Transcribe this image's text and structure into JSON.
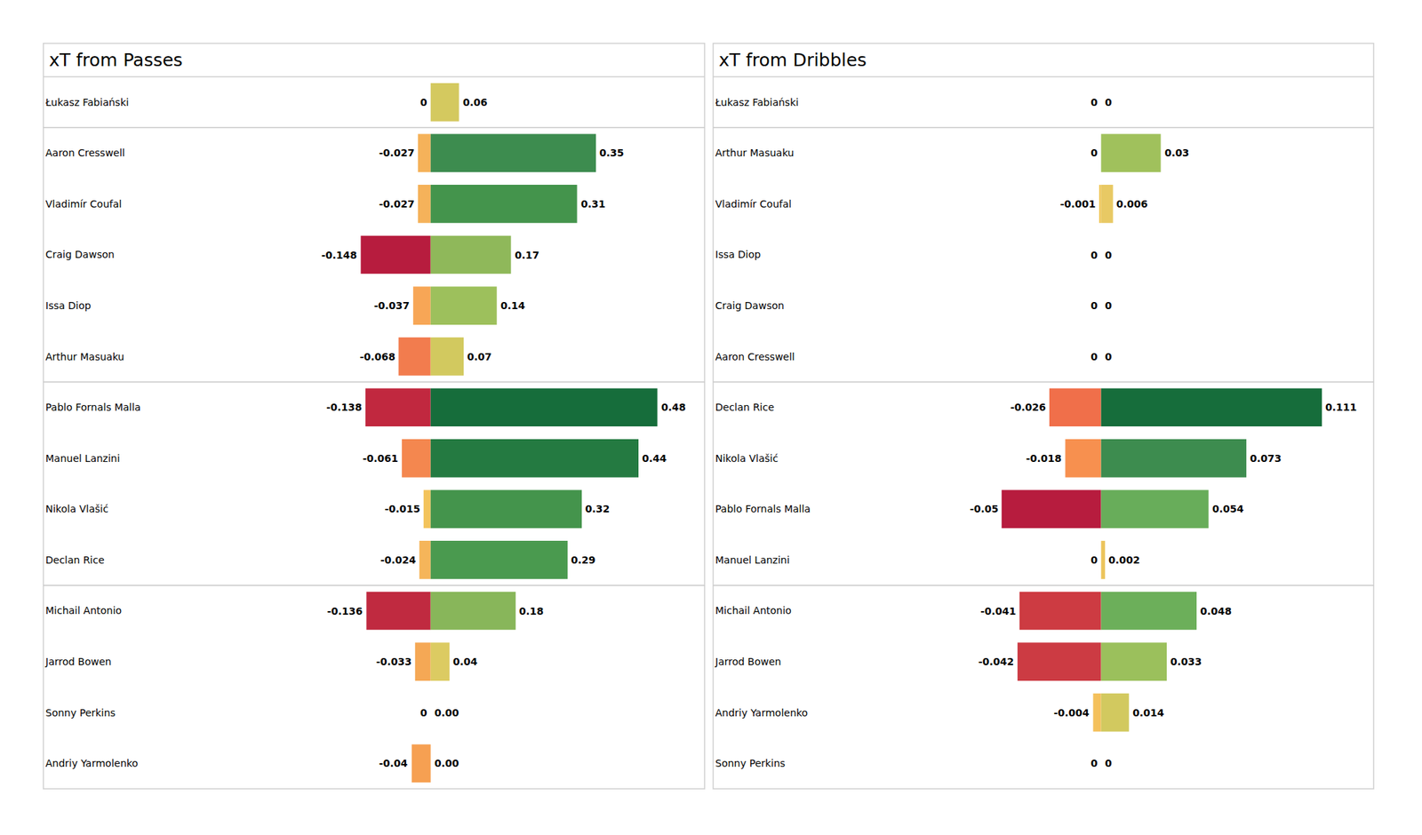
{
  "chart_data": [
    {
      "type": "bar",
      "title": "xT from Passes",
      "orientation": "horizontal",
      "data_labels": true,
      "tick_labels": "y",
      "categories": [
        "Łukasz Fabiański",
        "Aaron Cresswell",
        "Vladimír Coufal",
        "Craig Dawson",
        "Issa Diop",
        "Arthur Masuaku",
        "Pablo Fornals Malla",
        "Manuel Lanzini",
        "Nikola Vlašić",
        "Declan Rice",
        "Michail Antonio",
        "Jarrod Bowen",
        "Sonny Perkins",
        "Andriy Yarmolenko"
      ],
      "xlim": [
        -0.82,
        0.58
      ],
      "series": [
        {
          "values": [
            0,
            -0.027,
            -0.027,
            -0.148,
            -0.037,
            -0.068,
            -0.138,
            -0.061,
            -0.015,
            -0.024,
            -0.136,
            -0.033,
            0,
            -0.04
          ],
          "colors": [
            "#e8c964",
            "#f5b25a",
            "#f5b25a",
            "#b71c3e",
            "#f7a656",
            "#f27c4e",
            "#c1283f",
            "#f4874f",
            "#f3c35b",
            "#f5b55a",
            "#c02a40",
            "#f5a855",
            "#e8c964",
            "#f6a052"
          ]
        },
        {
          "values": [
            0.06,
            0.35,
            0.31,
            0.17,
            0.14,
            0.07,
            0.48,
            0.44,
            0.32,
            0.29,
            0.18,
            0.04,
            0,
            0
          ],
          "value_labels": [
            "0.06",
            "0.35",
            "0.31",
            "0.17",
            "0.14",
            "0.07",
            "0.48",
            "0.44",
            "0.32",
            "0.29",
            "0.18",
            "0.04",
            "0.00",
            "0.00"
          ],
          "colors": [
            "#d4c95f",
            "#3d8c4f",
            "#44944c",
            "#8fb85a",
            "#9dc05c",
            "#d2c95f",
            "#166d3b",
            "#247a41",
            "#44944c",
            "#4a9a4f",
            "#88b65a",
            "#dccb62",
            "#e8c964",
            "#e8c964"
          ]
        }
      ]
    },
    {
      "type": "bar",
      "title": "xT from Dribbles",
      "orientation": "horizontal",
      "data_labels": true,
      "tick_labels": "y",
      "categories": [
        "Łukasz Fabiański",
        "Arthur Masuaku",
        "Vladimír Coufal",
        "Issa Diop",
        "Craig Dawson",
        "Aaron Cresswell",
        "Declan Rice",
        "Nikola Vlašić",
        "Pablo Fornals Malla",
        "Manuel Lanzini",
        "Michail Antonio",
        "Jarrod Bowen",
        "Andriy Yarmolenko",
        "Sonny Perkins"
      ],
      "xlim": [
        -0.195,
        0.137
      ],
      "series": [
        {
          "values": [
            0,
            0,
            -0.001,
            0,
            0,
            0,
            -0.026,
            -0.018,
            -0.05,
            0,
            -0.041,
            -0.042,
            -0.004,
            0
          ],
          "colors": [
            "#e8c964",
            "#e8c964",
            "#f0c75c",
            "#e8c964",
            "#e8c964",
            "#e8c964",
            "#f06f4a",
            "#f7904f",
            "#b71c3e",
            "#e8c964",
            "#cd3b42",
            "#cc3b43",
            "#f4c05b",
            "#e8c964"
          ]
        },
        {
          "values": [
            0,
            0.03,
            0.006,
            0,
            0,
            0,
            0.111,
            0.073,
            0.054,
            0.002,
            0.048,
            0.033,
            0.014,
            0
          ],
          "colors": [
            "#e8c964",
            "#a0c15c",
            "#e8c964",
            "#e8c964",
            "#e8c964",
            "#e8c964",
            "#166d3b",
            "#3d8c4f",
            "#68ad5a",
            "#ecc45c",
            "#6caf5a",
            "#9bc05c",
            "#d2c95f",
            "#e8c964"
          ]
        }
      ]
    }
  ]
}
